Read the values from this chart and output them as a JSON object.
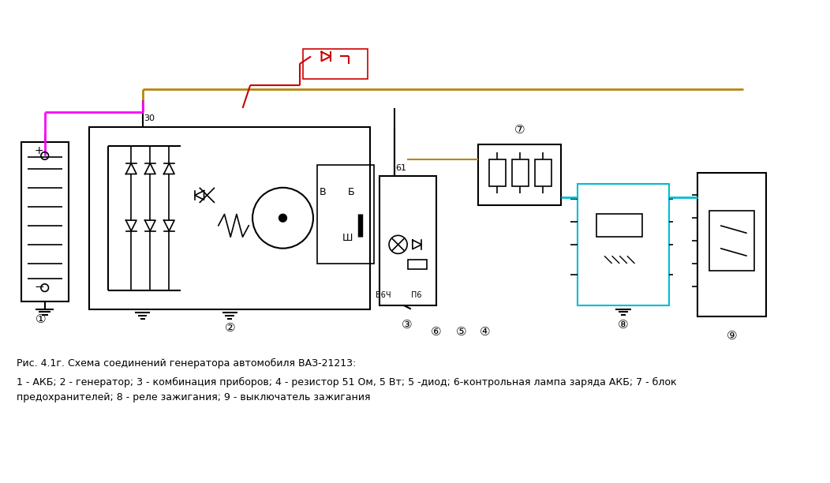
{
  "bg_color": "#ffffff",
  "fig_width": 10.52,
  "fig_height": 6.12,
  "caption_line1": "Рис. 4.1г. Схема соединений генератора автомобиля ВАЗ-21213:",
  "caption_line2": "1 - АКБ; 2 - генератор; 3 - комбинация приборов; 4 - резистор 51 Ом, 5 Вт; 5 -диод; 6-контрольная лампа заряда АКБ; 7 - блок",
  "caption_line3": "предохранителей; 8 - реле зажигания; 9 - выключатель зажигания",
  "color_pink": "#ff00ff",
  "color_dark_yellow": "#b8860b",
  "color_cyan": "#00bcd4",
  "color_red": "#cc0000",
  "color_black": "#000000",
  "color_gray": "#888888"
}
